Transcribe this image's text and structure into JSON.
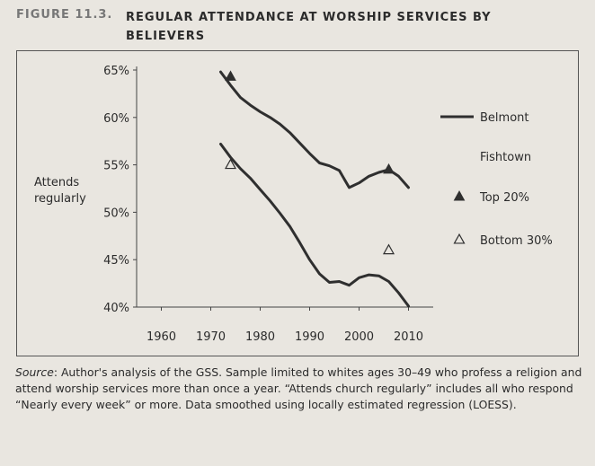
{
  "figure": {
    "label": "FIGURE 11.3.",
    "title": "REGULAR ATTENDANCE AT WORSHIP SERVICES BY BELIEVERS"
  },
  "source_note": {
    "lead": "Source",
    "text": ": Author's analysis of the GSS. Sample limited to whites ages 30–49 who profess a religion and attend worship services more than once a year. “Attends church regularly” includes all who respond “Nearly every week” or more. Data smoothed using locally estimated regression (LOESS)."
  },
  "colors": {
    "line": "#2f2f2f",
    "background": "#e9e6e0",
    "frame": "#555555"
  },
  "chart_data": {
    "type": "line",
    "title": "REGULAR ATTENDANCE AT WORSHIP SERVICES BY BELIEVERS",
    "ylabel": "Attends regularly",
    "xlabel": "",
    "xlim": [
      1955,
      2015
    ],
    "ylim": [
      40,
      65
    ],
    "x_ticks": [
      1960,
      1970,
      1980,
      1990,
      2000,
      2010
    ],
    "y_ticks": [
      40,
      45,
      50,
      55,
      60,
      65
    ],
    "y_tick_labels": [
      "40%",
      "45%",
      "50%",
      "55%",
      "60%",
      "65%"
    ],
    "series": [
      {
        "name": "Belmont",
        "style": "line",
        "x": [
          1972,
          1974,
          1976,
          1978,
          1980,
          1982,
          1984,
          1986,
          1988,
          1990,
          1992,
          1994,
          1996,
          1998,
          2000,
          2002,
          2004,
          2006,
          2008,
          2010
        ],
        "y": [
          64.8,
          63.4,
          62.1,
          61.3,
          60.6,
          60.0,
          59.3,
          58.4,
          57.3,
          56.2,
          55.2,
          54.9,
          54.4,
          52.6,
          53.1,
          53.8,
          54.2,
          54.5,
          53.8,
          52.6
        ]
      },
      {
        "name": "Fishtown",
        "style": "line",
        "x": [
          1972,
          1974,
          1976,
          1978,
          1980,
          1982,
          1984,
          1986,
          1988,
          1990,
          1992,
          1994,
          1996,
          1998,
          2000,
          2002,
          2004,
          2006,
          2008,
          2010
        ],
        "y": [
          57.2,
          55.8,
          54.6,
          53.6,
          52.4,
          51.2,
          49.9,
          48.5,
          46.8,
          45.0,
          43.5,
          42.6,
          42.7,
          42.3,
          43.1,
          43.4,
          43.3,
          42.7,
          41.5,
          40.1
        ]
      },
      {
        "name": "Top 20%",
        "style": "marker",
        "marker": "filled-triangle",
        "x": [
          1974,
          2006
        ],
        "y": [
          64.3,
          54.5
        ]
      },
      {
        "name": "Bottom 30%",
        "style": "marker",
        "marker": "open-triangle",
        "x": [
          1974,
          2006
        ],
        "y": [
          55.0,
          46.0
        ]
      }
    ],
    "legend": [
      {
        "label": "Belmont",
        "symbol": "line"
      },
      {
        "label": "Fishtown",
        "symbol": "none"
      },
      {
        "label": "Top 20%",
        "symbol": "filled-triangle"
      },
      {
        "label": "Bottom 30%",
        "symbol": "open-triangle"
      }
    ],
    "legend_position": "right",
    "grid": false
  }
}
